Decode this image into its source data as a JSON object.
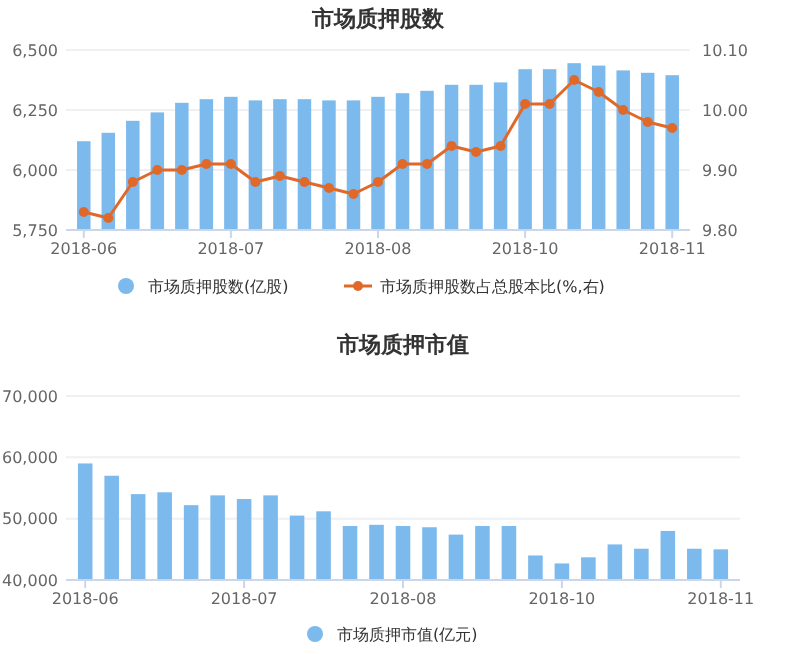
{
  "chart_data": [
    {
      "type": "bar",
      "title": "市场质押股数",
      "categories": [
        "2018-06",
        null,
        null,
        null,
        null,
        null,
        "2018-07",
        null,
        null,
        null,
        null,
        null,
        "2018-08",
        null,
        null,
        null,
        null,
        null,
        "2018-10",
        null,
        null,
        null,
        null,
        null,
        "2018-11"
      ],
      "series": [
        {
          "name": "市场质押股数(亿股)",
          "color": "#7cb9ec",
          "values": [
            6120,
            6155,
            6205,
            6240,
            6280,
            6295,
            6305,
            6290,
            6295,
            6295,
            6290,
            6290,
            6305,
            6320,
            6330,
            6355,
            6355,
            6365,
            6420,
            6420,
            6445,
            6435,
            6415,
            6405,
            6395
          ]
        },
        {
          "name": "市场质押股数占总股本比(%,右)",
          "type": "line",
          "axis": "y2",
          "color": "#e0692a",
          "values": [
            9.83,
            9.82,
            9.88,
            9.9,
            9.9,
            9.91,
            9.91,
            9.88,
            9.89,
            9.88,
            9.87,
            9.86,
            9.88,
            9.91,
            9.91,
            9.94,
            9.93,
            9.94,
            10.01,
            10.01,
            10.05,
            10.03,
            10.0,
            9.98,
            9.97
          ]
        }
      ],
      "ylim": [
        5750,
        6500
      ],
      "yticks": [
        {
          "value": 5750,
          "label": "5,750"
        },
        {
          "value": 6000,
          "label": "6,000"
        },
        {
          "value": 6250,
          "label": "6,250"
        },
        {
          "value": 6500,
          "label": "6,500"
        }
      ],
      "y2lim": [
        9.8,
        10.1
      ],
      "y2ticks": [
        {
          "value": 9.8,
          "label": "9.80"
        },
        {
          "value": 9.9,
          "label": "9.90"
        },
        {
          "value": 10,
          "label": "10.00"
        },
        {
          "value": 10.1,
          "label": "10.10"
        }
      ],
      "grid": "y",
      "legend": "bottom",
      "marker": "circle"
    },
    {
      "type": "bar",
      "title": "市场质押市值",
      "categories": [
        "2018-06",
        null,
        null,
        null,
        null,
        null,
        "2018-07",
        null,
        null,
        null,
        null,
        null,
        "2018-08",
        null,
        null,
        null,
        null,
        null,
        "2018-10",
        null,
        null,
        null,
        null,
        null,
        "2018-11"
      ],
      "series": [
        {
          "name": "市场质押市值(亿元)",
          "color": "#7cb9ec",
          "values": [
            59000,
            57000,
            54000,
            54300,
            52200,
            53800,
            53200,
            53800,
            50500,
            51200,
            48800,
            49000,
            48800,
            48600,
            47400,
            48800,
            48800,
            44000,
            42700,
            43700,
            45800,
            45100,
            48000,
            45100,
            45000
          ]
        }
      ],
      "ylim": [
        40000,
        70000
      ],
      "yticks": [
        {
          "value": 40000,
          "label": "40,000"
        },
        {
          "value": 50000,
          "label": "50,000"
        },
        {
          "value": 60000,
          "label": "60,000"
        },
        {
          "value": 70000,
          "label": "70,000"
        }
      ],
      "grid": "y",
      "legend": "bottom"
    }
  ]
}
